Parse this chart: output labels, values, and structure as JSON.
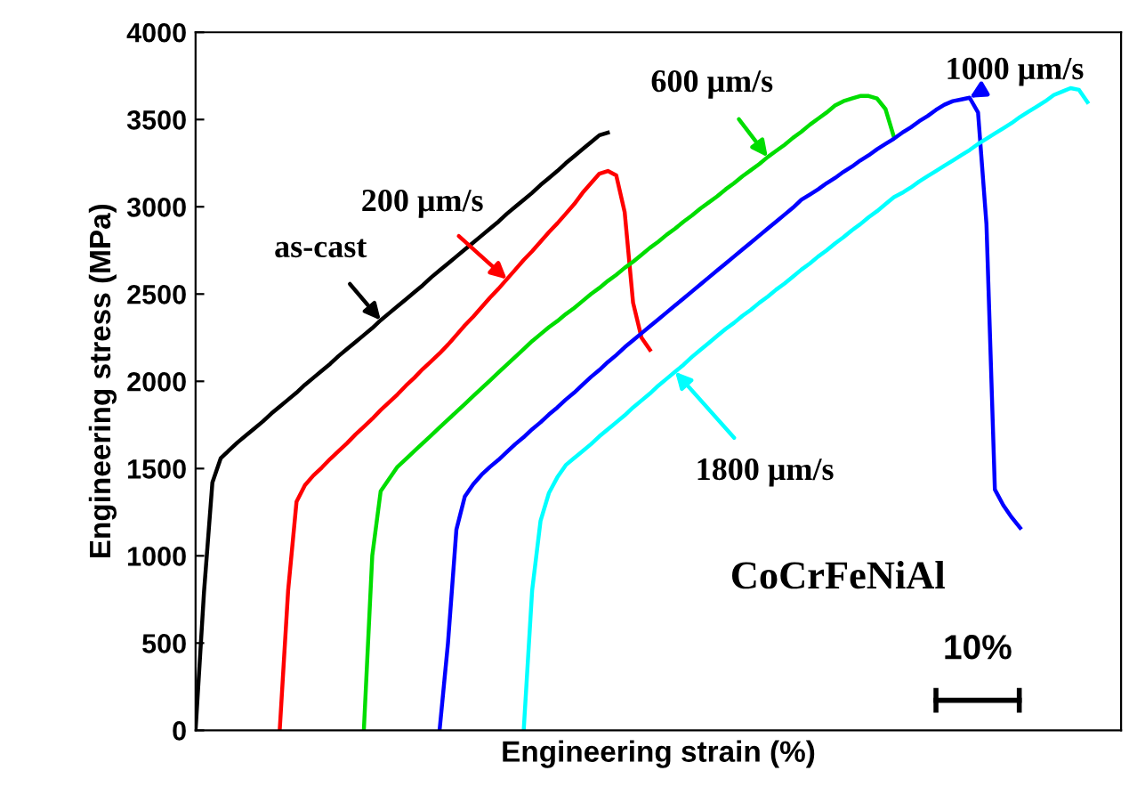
{
  "chart_data": {
    "type": "line",
    "xlabel": "Engineering strain (%)",
    "ylabel": "Engineering stress (MPa)",
    "categories": [
      null,
      null,
      null,
      null,
      null,
      null,
      null,
      null,
      null,
      null,
      null,
      null,
      null,
      null,
      null,
      null,
      null,
      null,
      null,
      null,
      null,
      null,
      null,
      null,
      null,
      null,
      null,
      null,
      null,
      null,
      null,
      null,
      null,
      null,
      null,
      null,
      null,
      null,
      null,
      null,
      null,
      null,
      null,
      null,
      null,
      null,
      null,
      null,
      null,
      null,
      null,
      null,
      null,
      null,
      null,
      null,
      null,
      null,
      null,
      null,
      null,
      null,
      null,
      null,
      null,
      null,
      null,
      null,
      null,
      null,
      null,
      null,
      null,
      null,
      null,
      null,
      null,
      null,
      null,
      null,
      null,
      null,
      null,
      null,
      null,
      null,
      null,
      null,
      null,
      null,
      null,
      null,
      null,
      null,
      null,
      null,
      null,
      null,
      null,
      null,
      null,
      null,
      null,
      null,
      null,
      null,
      null,
      null,
      null,
      null,
      null
    ],
    "ylim": [
      0,
      4000
    ],
    "yticks": [
      0,
      500,
      1000,
      1500,
      2000,
      2500,
      3000,
      3500,
      4000
    ],
    "tick_labels": "y",
    "grid": false,
    "marker": "none",
    "line_style": "solid",
    "series": [
      {
        "color": "#000000",
        "values": [
          0,
          790,
          1420,
          1560,
          1605,
          1650,
          1690,
          1730,
          1770,
          1815,
          1855,
          1895,
          1935,
          1980,
          2020,
          2060,
          2100,
          2145,
          2185,
          2225,
          2265,
          2305,
          2350,
          2390,
          2430,
          2470,
          2510,
          2550,
          2595,
          2635,
          2675,
          2715,
          2755,
          2795,
          2835,
          2875,
          2915,
          2960,
          3000,
          3040,
          3080,
          3125,
          3165,
          3205,
          3250,
          3290,
          3330,
          3370,
          3410,
          3425,
          null,
          null,
          null,
          null,
          null,
          null,
          null,
          null,
          null,
          null,
          null,
          null,
          null,
          null,
          null,
          null,
          null,
          null,
          null,
          null,
          null,
          null,
          null,
          null,
          null,
          null,
          null,
          null,
          null,
          null,
          null,
          null,
          null,
          null,
          null,
          null,
          null,
          null,
          null,
          null,
          null,
          null,
          null,
          null,
          null,
          null,
          null,
          null,
          null,
          null,
          null,
          null,
          null,
          null,
          null,
          null,
          null,
          null,
          null,
          null,
          null
        ]
      },
      {
        "color": "#ff0000",
        "values": [
          null,
          null,
          null,
          null,
          null,
          null,
          null,
          null,
          null,
          null,
          0,
          800,
          1310,
          1405,
          1460,
          1505,
          1555,
          1600,
          1645,
          1695,
          1740,
          1785,
          1835,
          1880,
          1925,
          1975,
          2020,
          2070,
          2115,
          2160,
          2210,
          2265,
          2320,
          2370,
          2425,
          2480,
          2530,
          2585,
          2640,
          2695,
          2745,
          2800,
          2855,
          2905,
          2960,
          3015,
          3080,
          3135,
          3190,
          3205,
          3180,
          2970,
          2450,
          2250,
          2180,
          null,
          null,
          null,
          null,
          null,
          null,
          null,
          null,
          null,
          null,
          null,
          null,
          null,
          null,
          null,
          null,
          null,
          null,
          null,
          null,
          null,
          null,
          null,
          null,
          null,
          null,
          null,
          null,
          null,
          null,
          null,
          null,
          null,
          null,
          null,
          null,
          null,
          null,
          null,
          null,
          null,
          null,
          null,
          null,
          null,
          null,
          null,
          null,
          null,
          null,
          null,
          null,
          null,
          null,
          null,
          null
        ]
      },
      {
        "color": "#00dd00",
        "values": [
          null,
          null,
          null,
          null,
          null,
          null,
          null,
          null,
          null,
          null,
          null,
          null,
          null,
          null,
          null,
          null,
          null,
          null,
          null,
          null,
          0,
          1000,
          1370,
          1440,
          1510,
          1555,
          1600,
          1645,
          1690,
          1735,
          1780,
          1825,
          1870,
          1915,
          1960,
          2005,
          2050,
          2095,
          2140,
          2185,
          2230,
          2270,
          2310,
          2345,
          2385,
          2420,
          2460,
          2500,
          2535,
          2575,
          2610,
          2650,
          2685,
          2725,
          2765,
          2800,
          2840,
          2875,
          2915,
          2950,
          2990,
          3025,
          3060,
          3100,
          3135,
          3175,
          3210,
          3245,
          3285,
          3320,
          3355,
          3395,
          3430,
          3470,
          3505,
          3540,
          3580,
          3605,
          3620,
          3635,
          3635,
          3620,
          3560,
          3400,
          null,
          null,
          null,
          null,
          null,
          null,
          null,
          null,
          null,
          null,
          null,
          null,
          null,
          null,
          null,
          null,
          null,
          null,
          null,
          null,
          null,
          null,
          null,
          null,
          null,
          null,
          null
        ]
      },
      {
        "color": "#0000ff",
        "values": [
          null,
          null,
          null,
          null,
          null,
          null,
          null,
          null,
          null,
          null,
          null,
          null,
          null,
          null,
          null,
          null,
          null,
          null,
          null,
          null,
          null,
          null,
          null,
          null,
          null,
          null,
          null,
          null,
          null,
          0,
          500,
          1150,
          1340,
          1410,
          1465,
          1510,
          1550,
          1595,
          1640,
          1680,
          1725,
          1765,
          1810,
          1850,
          1895,
          1935,
          1980,
          2025,
          2065,
          2110,
          2150,
          2195,
          2235,
          2275,
          2315,
          2355,
          2395,
          2435,
          2475,
          2515,
          2555,
          2595,
          2635,
          2675,
          2715,
          2755,
          2795,
          2835,
          2875,
          2915,
          2955,
          2995,
          3040,
          3070,
          3100,
          3135,
          3165,
          3200,
          3230,
          3265,
          3295,
          3330,
          3360,
          3390,
          3425,
          3455,
          3490,
          3520,
          3555,
          3585,
          3605,
          3615,
          3625,
          3540,
          2900,
          1380,
          1290,
          1220,
          1160,
          null,
          null,
          null,
          null,
          null,
          null,
          null,
          null,
          null,
          null,
          null,
          null
        ]
      },
      {
        "color": "#00ffff",
        "values": [
          null,
          null,
          null,
          null,
          null,
          null,
          null,
          null,
          null,
          null,
          null,
          null,
          null,
          null,
          null,
          null,
          null,
          null,
          null,
          null,
          null,
          null,
          null,
          null,
          null,
          null,
          null,
          null,
          null,
          null,
          null,
          null,
          null,
          null,
          null,
          null,
          null,
          null,
          null,
          0,
          800,
          1200,
          1360,
          1450,
          1520,
          1560,
          1600,
          1640,
          1685,
          1725,
          1765,
          1805,
          1850,
          1890,
          1930,
          1975,
          2015,
          2055,
          2095,
          2140,
          2180,
          2220,
          2260,
          2300,
          2335,
          2375,
          2410,
          2450,
          2485,
          2525,
          2560,
          2600,
          2640,
          2675,
          2715,
          2750,
          2790,
          2825,
          2865,
          2900,
          2940,
          2975,
          3015,
          3055,
          3080,
          3110,
          3145,
          3175,
          3205,
          3235,
          3265,
          3295,
          3325,
          3360,
          3390,
          3420,
          3450,
          3480,
          3515,
          3545,
          3575,
          3605,
          3640,
          3660,
          3680,
          3670,
          3600,
          null,
          null,
          null,
          null
        ]
      }
    ],
    "annotations": [
      "as-cast",
      "200 μm/s",
      "600 μm/s",
      "1000 μm/s",
      "1800 μm/s",
      "CoCrFeNiAl",
      "10%"
    ],
    "legend": false
  }
}
